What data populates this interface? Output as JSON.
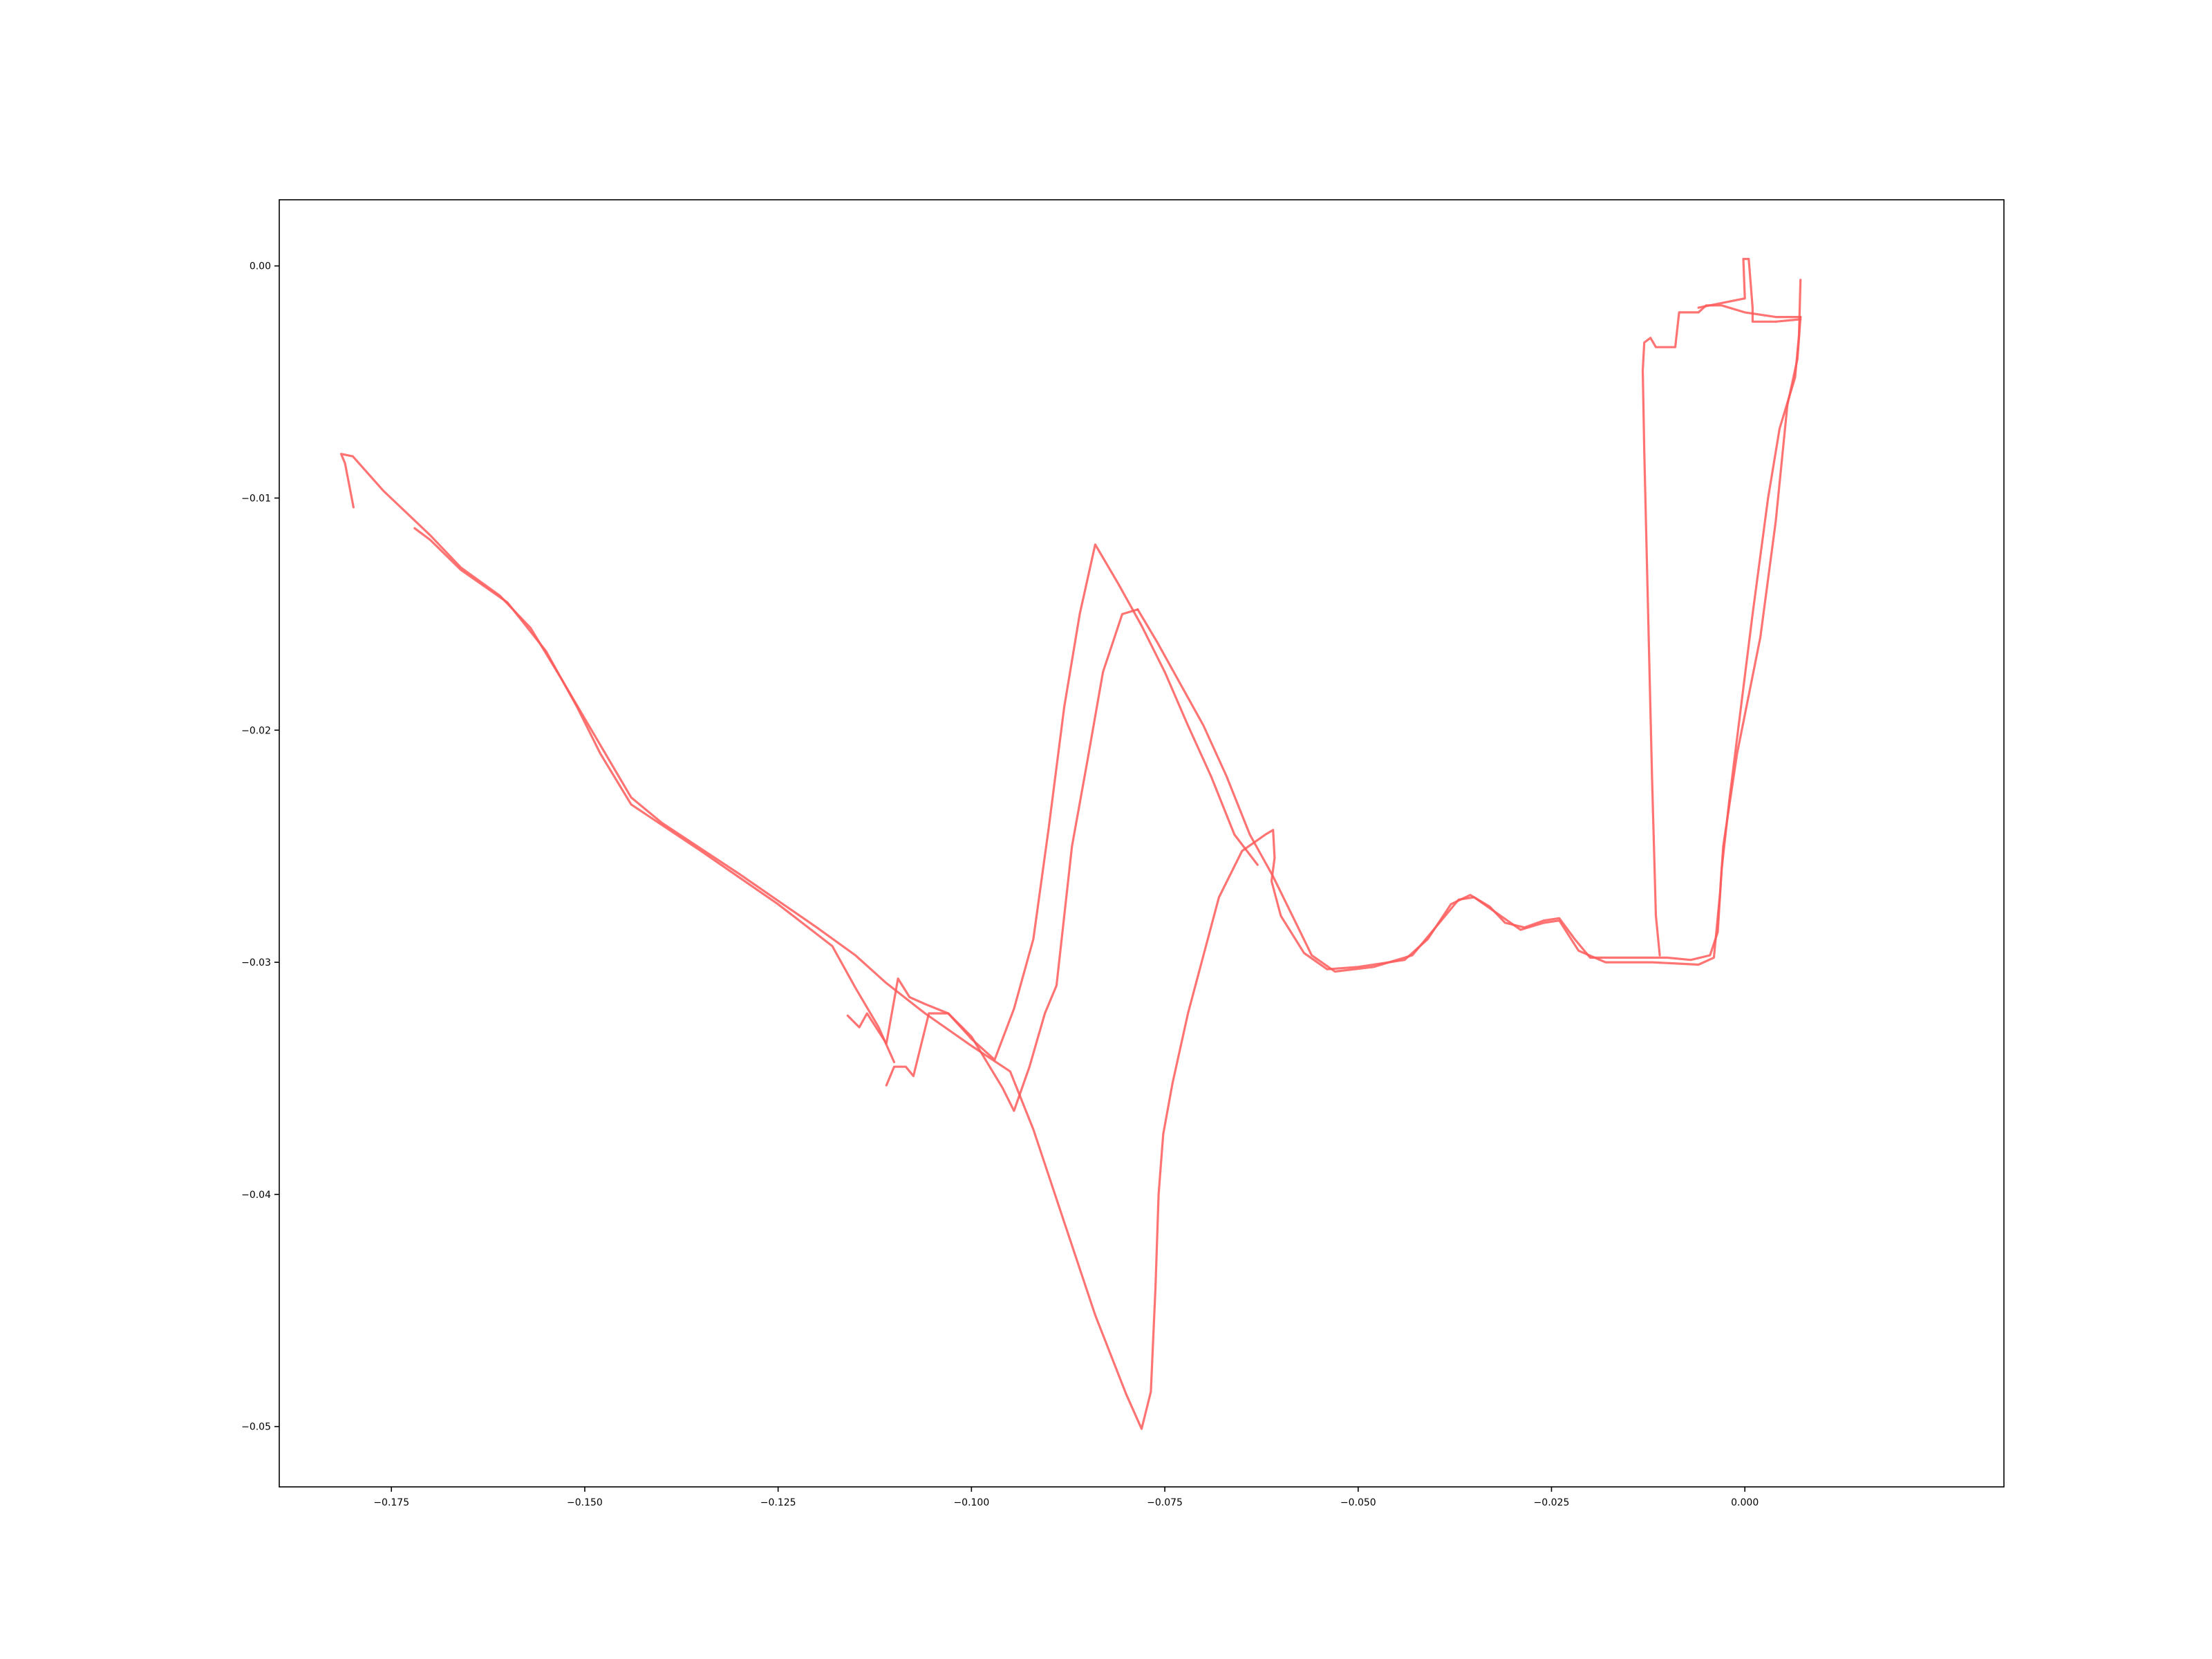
{
  "chart_data": {
    "type": "line",
    "title": "",
    "xlabel": "",
    "ylabel": "",
    "xlim": [
      -0.1895,
      0.0335
    ],
    "ylim": [
      -0.0526,
      0.00285
    ],
    "grid": false,
    "legend": "none",
    "line_color": "#ff5a5a",
    "x_ticks": [
      {
        "value": -0.175,
        "label": "−0.175"
      },
      {
        "value": -0.15,
        "label": "−0.150"
      },
      {
        "value": -0.125,
        "label": "−0.125"
      },
      {
        "value": -0.1,
        "label": "−0.100"
      },
      {
        "value": -0.075,
        "label": "−0.075"
      },
      {
        "value": -0.05,
        "label": "−0.050"
      },
      {
        "value": -0.025,
        "label": "−0.025"
      },
      {
        "value": 0.0,
        "label": "0.000"
      }
    ],
    "y_ticks": [
      {
        "value": 0.0,
        "label": "0.00"
      },
      {
        "value": -0.01,
        "label": "−0.01"
      },
      {
        "value": -0.02,
        "label": "−0.02"
      },
      {
        "value": -0.03,
        "label": "−0.03"
      },
      {
        "value": -0.04,
        "label": "−0.04"
      },
      {
        "value": -0.05,
        "label": "−0.05"
      }
    ],
    "series": [
      {
        "points": [
          [
            -0.1799,
            -0.0104
          ],
          [
            -0.181,
            -0.0085
          ],
          [
            -0.1815,
            -0.0081
          ],
          [
            -0.18,
            -0.0082
          ],
          [
            -0.176,
            -0.0097
          ],
          [
            -0.17,
            -0.0116
          ],
          [
            -0.166,
            -0.013
          ],
          [
            -0.161,
            -0.0142
          ],
          [
            -0.157,
            -0.0156
          ],
          [
            -0.153,
            -0.0178
          ],
          [
            -0.15,
            -0.0195
          ],
          [
            -0.147,
            -0.0212
          ],
          [
            -0.144,
            -0.0229
          ],
          [
            -0.14,
            -0.024
          ],
          [
            -0.13,
            -0.0262
          ],
          [
            -0.12,
            -0.0285
          ],
          [
            -0.115,
            -0.0297
          ],
          [
            -0.111,
            -0.0309
          ],
          [
            -0.106,
            -0.0322
          ],
          [
            -0.1,
            -0.0336
          ],
          [
            -0.095,
            -0.0347
          ],
          [
            -0.092,
            -0.0372
          ],
          [
            -0.088,
            -0.0412
          ],
          [
            -0.084,
            -0.0452
          ],
          [
            -0.08,
            -0.0486
          ],
          [
            -0.078,
            -0.0501
          ],
          [
            -0.0768,
            -0.0485
          ],
          [
            -0.0762,
            -0.044
          ],
          [
            -0.0758,
            -0.04
          ],
          [
            -0.0752,
            -0.0374
          ],
          [
            -0.074,
            -0.0352
          ],
          [
            -0.072,
            -0.0322
          ],
          [
            -0.07,
            -0.0297
          ],
          [
            -0.068,
            -0.0272
          ],
          [
            -0.065,
            -0.0252
          ],
          [
            -0.062,
            -0.0245
          ],
          [
            -0.061,
            -0.0243
          ],
          [
            -0.0608,
            -0.0255
          ],
          [
            -0.0612,
            -0.0265
          ],
          [
            -0.06,
            -0.028
          ],
          [
            -0.057,
            -0.0296
          ],
          [
            -0.054,
            -0.0303
          ],
          [
            -0.05,
            -0.0302
          ],
          [
            -0.044,
            -0.0299
          ],
          [
            -0.041,
            -0.029
          ],
          [
            -0.038,
            -0.0275
          ],
          [
            -0.0355,
            -0.0271
          ],
          [
            -0.033,
            -0.0276
          ],
          [
            -0.031,
            -0.0283
          ],
          [
            -0.0285,
            -0.0285
          ],
          [
            -0.026,
            -0.0282
          ],
          [
            -0.024,
            -0.0281
          ],
          [
            -0.022,
            -0.029
          ],
          [
            -0.02,
            -0.0298
          ],
          [
            -0.015,
            -0.0298
          ],
          [
            -0.01,
            -0.0298
          ],
          [
            -0.007,
            -0.0299
          ],
          [
            -0.0045,
            -0.0297
          ],
          [
            -0.0035,
            -0.0287
          ],
          [
            -0.003,
            -0.026
          ],
          [
            -0.002,
            -0.023
          ],
          [
            -0.0005,
            -0.019
          ],
          [
            0.001,
            -0.015
          ],
          [
            0.003,
            -0.01
          ],
          [
            0.0045,
            -0.007
          ],
          [
            0.0065,
            -0.0048
          ],
          [
            0.007,
            -0.003
          ],
          [
            0.0072,
            -0.0006
          ]
        ]
      },
      {
        "points": [
          [
            -0.0785,
            -0.0148
          ],
          [
            -0.076,
            -0.0162
          ],
          [
            -0.073,
            -0.018
          ],
          [
            -0.07,
            -0.0198
          ],
          [
            -0.067,
            -0.022
          ],
          [
            -0.064,
            -0.0245
          ],
          [
            -0.061,
            -0.0263
          ],
          [
            -0.0585,
            -0.028
          ],
          [
            -0.056,
            -0.0297
          ],
          [
            -0.053,
            -0.0304
          ],
          [
            -0.048,
            -0.0302
          ],
          [
            -0.043,
            -0.0297
          ],
          [
            -0.04,
            -0.0285
          ],
          [
            -0.037,
            -0.0273
          ],
          [
            -0.035,
            -0.0272
          ],
          [
            -0.032,
            -0.0279
          ],
          [
            -0.029,
            -0.0286
          ],
          [
            -0.026,
            -0.0283
          ],
          [
            -0.024,
            -0.0282
          ],
          [
            -0.0215,
            -0.0295
          ],
          [
            -0.018,
            -0.03
          ],
          [
            -0.012,
            -0.03
          ],
          [
            -0.006,
            -0.0301
          ],
          [
            -0.004,
            -0.0298
          ],
          [
            -0.0032,
            -0.027
          ],
          [
            -0.0028,
            -0.025
          ],
          [
            -0.001,
            -0.021
          ],
          [
            0.002,
            -0.016
          ],
          [
            0.004,
            -0.011
          ],
          [
            0.0055,
            -0.006
          ],
          [
            0.0068,
            -0.004
          ],
          [
            0.0072,
            -0.0022
          ]
        ]
      },
      {
        "points": [
          [
            -0.111,
            -0.0353
          ],
          [
            -0.11,
            -0.0345
          ],
          [
            -0.1085,
            -0.0345
          ],
          [
            -0.1075,
            -0.0349
          ],
          [
            -0.1055,
            -0.0322
          ],
          [
            -0.103,
            -0.0322
          ],
          [
            -0.1,
            -0.0332
          ],
          [
            -0.096,
            -0.0354
          ],
          [
            -0.0945,
            -0.0364
          ],
          [
            -0.0925,
            -0.0345
          ],
          [
            -0.0905,
            -0.0322
          ],
          [
            -0.089,
            -0.031
          ],
          [
            -0.087,
            -0.025
          ],
          [
            -0.085,
            -0.0213
          ],
          [
            -0.083,
            -0.0175
          ],
          [
            -0.0805,
            -0.015
          ],
          [
            -0.0785,
            -0.0148
          ]
        ]
      },
      {
        "points": [
          [
            -0.116,
            -0.0323
          ],
          [
            -0.1145,
            -0.0328
          ],
          [
            -0.1135,
            -0.0322
          ],
          [
            -0.111,
            -0.0335
          ],
          [
            -0.1095,
            -0.0307
          ],
          [
            -0.108,
            -0.0315
          ],
          [
            -0.106,
            -0.0318
          ],
          [
            -0.103,
            -0.0322
          ],
          [
            -0.1,
            -0.0333
          ],
          [
            -0.097,
            -0.0342
          ],
          [
            -0.0945,
            -0.032
          ],
          [
            -0.092,
            -0.029
          ],
          [
            -0.09,
            -0.0242
          ],
          [
            -0.088,
            -0.019
          ],
          [
            -0.086,
            -0.015
          ],
          [
            -0.084,
            -0.012
          ],
          [
            -0.081,
            -0.0137
          ],
          [
            -0.078,
            -0.0155
          ],
          [
            -0.075,
            -0.0175
          ],
          [
            -0.072,
            -0.0198
          ],
          [
            -0.069,
            -0.022
          ],
          [
            -0.066,
            -0.0245
          ],
          [
            -0.063,
            -0.0258
          ]
        ]
      },
      {
        "points": [
          [
            -0.172,
            -0.0113
          ],
          [
            -0.17,
            -0.0118
          ],
          [
            -0.166,
            -0.0131
          ],
          [
            -0.16,
            -0.0145
          ],
          [
            -0.155,
            -0.0166
          ],
          [
            -0.151,
            -0.019
          ],
          [
            -0.148,
            -0.021
          ],
          [
            -0.144,
            -0.0232
          ],
          [
            -0.135,
            -0.0252
          ],
          [
            -0.125,
            -0.0275
          ],
          [
            -0.118,
            -0.0293
          ],
          [
            -0.115,
            -0.0311
          ],
          [
            -0.112,
            -0.0328
          ],
          [
            -0.11,
            -0.0343
          ]
        ]
      },
      {
        "points": [
          [
            -0.011,
            -0.0297
          ],
          [
            -0.0115,
            -0.028
          ],
          [
            -0.012,
            -0.022
          ],
          [
            -0.0125,
            -0.015
          ],
          [
            -0.013,
            -0.008
          ],
          [
            -0.0132,
            -0.0045
          ],
          [
            -0.013,
            -0.0033
          ],
          [
            -0.0122,
            -0.0031
          ],
          [
            -0.0115,
            -0.0035
          ],
          [
            -0.009,
            -0.0035
          ],
          [
            -0.0085,
            -0.002
          ],
          [
            -0.006,
            -0.002
          ],
          [
            -0.005,
            -0.0017
          ],
          [
            -0.003,
            -0.0017
          ],
          [
            0.0,
            -0.002
          ],
          [
            0.004,
            -0.0022
          ],
          [
            0.0072,
            -0.0022
          ]
        ]
      },
      {
        "points": [
          [
            0.0072,
            -0.0023
          ],
          [
            0.004,
            -0.0024
          ],
          [
            0.001,
            -0.0024
          ],
          [
            0.001,
            -0.0018
          ],
          [
            0.0005,
            0.0003
          ],
          [
            -0.0002,
            0.0003
          ],
          [
            0.0,
            -0.0014
          ],
          [
            -0.003,
            -0.0016
          ],
          [
            -0.006,
            -0.0018
          ]
        ]
      }
    ]
  }
}
